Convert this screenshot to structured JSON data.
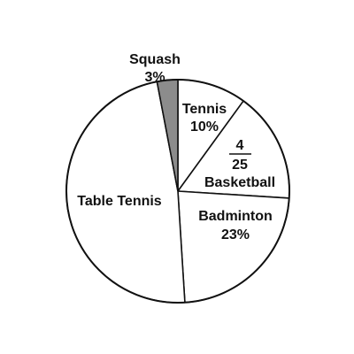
{
  "chart_data": {
    "type": "pie",
    "slices": [
      {
        "label": "Tennis",
        "value_label": "10%",
        "value": 0.1,
        "color": "#ffffff"
      },
      {
        "label": "Basketball",
        "numerator": "4",
        "denominator": "25",
        "value": 0.16,
        "color": "#ffffff"
      },
      {
        "label": "Badminton",
        "value_label": "23%",
        "value": 0.23,
        "color": "#ffffff"
      },
      {
        "label": "Table Tennis",
        "value": 0.48,
        "color": "#ffffff"
      },
      {
        "label": "Squash",
        "value_label": "3%",
        "value": 0.03,
        "color": "#8c8c8c"
      }
    ],
    "legend": "none"
  },
  "colors": {
    "stroke": "#111111",
    "highlight": "#8c8c8c"
  }
}
